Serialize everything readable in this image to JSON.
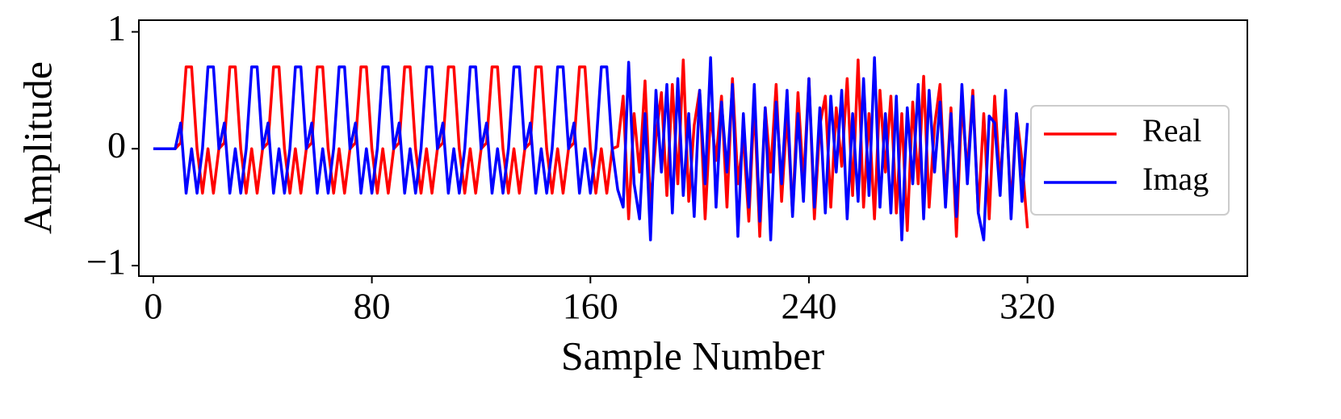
{
  "chart_data": {
    "type": "line",
    "x": [
      0,
      2,
      4,
      6,
      8,
      10,
      12,
      14,
      16,
      18,
      20,
      22,
      24,
      26,
      28,
      30,
      32,
      34,
      36,
      38,
      40,
      42,
      44,
      46,
      48,
      50,
      52,
      54,
      56,
      58,
      60,
      62,
      64,
      66,
      68,
      70,
      72,
      74,
      76,
      78,
      80,
      82,
      84,
      86,
      88,
      90,
      92,
      94,
      96,
      98,
      100,
      102,
      104,
      106,
      108,
      110,
      112,
      114,
      116,
      118,
      120,
      122,
      124,
      126,
      128,
      130,
      132,
      134,
      136,
      138,
      140,
      142,
      144,
      146,
      148,
      150,
      152,
      154,
      156,
      158,
      160,
      162,
      164,
      166,
      168,
      170,
      172,
      174,
      176,
      178,
      180,
      182,
      184,
      186,
      188,
      190,
      192,
      194,
      196,
      198,
      200,
      202,
      204,
      206,
      208,
      210,
      212,
      214,
      216,
      218,
      220,
      222,
      224,
      226,
      228,
      230,
      232,
      234,
      236,
      238,
      240,
      242,
      244,
      246,
      248,
      250,
      252,
      254,
      256,
      258,
      260,
      262,
      264,
      266,
      268,
      270,
      272,
      274,
      276,
      278,
      280,
      282,
      284,
      286,
      288,
      290,
      292,
      294,
      296,
      298,
      300,
      302,
      304,
      306,
      308,
      310,
      312,
      314,
      316,
      318,
      320
    ],
    "series": [
      {
        "name": "Real",
        "color": "#ff0000",
        "values": [
          0,
          0,
          0,
          0,
          0,
          0.05,
          0.7,
          0.7,
          0,
          -0.38,
          0,
          -0.38,
          0,
          0.05,
          0.7,
          0.7,
          0,
          -0.38,
          0,
          -0.38,
          0,
          0.05,
          0.7,
          0.7,
          0,
          -0.38,
          0,
          -0.38,
          0,
          0.05,
          0.7,
          0.7,
          0,
          -0.38,
          0,
          -0.38,
          0,
          0.05,
          0.7,
          0.7,
          0,
          -0.38,
          0,
          -0.38,
          0,
          0.05,
          0.7,
          0.7,
          0,
          -0.38,
          0,
          -0.38,
          0,
          0.05,
          0.7,
          0.7,
          0,
          -0.38,
          0,
          -0.38,
          0,
          0.05,
          0.7,
          0.7,
          0,
          -0.38,
          0,
          -0.38,
          0,
          0.05,
          0.7,
          0.7,
          0,
          -0.38,
          0,
          -0.38,
          0,
          0.05,
          0.7,
          0.7,
          0,
          -0.38,
          0,
          -0.38,
          0,
          0.02,
          0.45,
          -0.6,
          0.3,
          -0.2,
          0.58,
          -0.5,
          0.1,
          0.48,
          -0.4,
          0.55,
          -0.3,
          0.76,
          -0.45,
          0.2,
          0.5,
          -0.6,
          0.3,
          -0.1,
          0.45,
          -0.5,
          0.6,
          -0.3,
          0.1,
          -0.62,
          0.4,
          -0.75,
          0.35,
          -0.2,
          0.55,
          -0.45,
          0.3,
          -0.55,
          0.48,
          -0.3,
          0.6,
          -0.6,
          0.2,
          0.45,
          -0.5,
          0.35,
          -0.15,
          0.6,
          -0.4,
          0.76,
          -0.5,
          0.3,
          -0.6,
          0.5,
          -0.2,
          0.45,
          -0.55,
          0.3,
          -0.7,
          0.4,
          -0.3,
          0.62,
          -0.5,
          0.2,
          0.55,
          -0.45,
          0.35,
          -0.75,
          0.4,
          -0.2,
          0.5,
          -0.55,
          0.3,
          -0.6,
          0.45,
          -0.3,
          0.38,
          -0.5,
          0.3,
          -0.1,
          -0.68
        ]
      },
      {
        "name": "Imag",
        "color": "#0000ff",
        "values": [
          0,
          0,
          0,
          0,
          0,
          0.22,
          -0.38,
          0,
          -0.38,
          0,
          0.7,
          0.7,
          0,
          0.22,
          -0.38,
          0,
          -0.38,
          0,
          0.7,
          0.7,
          0,
          0.22,
          -0.38,
          0,
          -0.38,
          0,
          0.7,
          0.7,
          0,
          0.22,
          -0.38,
          0,
          -0.38,
          0,
          0.7,
          0.7,
          0,
          0.22,
          -0.38,
          0,
          -0.38,
          0,
          0.7,
          0.7,
          0,
          0.22,
          -0.38,
          0,
          -0.38,
          0,
          0.7,
          0.7,
          0,
          0.22,
          -0.38,
          0,
          -0.38,
          0,
          0.7,
          0.7,
          0,
          0.22,
          -0.38,
          0,
          -0.38,
          0,
          0.7,
          0.7,
          0,
          0.22,
          -0.38,
          0,
          -0.38,
          0,
          0.7,
          0.7,
          0,
          0.22,
          -0.38,
          0,
          -0.38,
          0,
          0.7,
          0.7,
          0,
          -0.35,
          -0.5,
          0.74,
          -0.3,
          -0.6,
          0.3,
          -0.78,
          0.5,
          -0.2,
          0.55,
          -0.55,
          0.6,
          -0.4,
          0.3,
          -0.58,
          0.5,
          -0.3,
          0.78,
          -0.5,
          0.4,
          -0.2,
          0.55,
          -0.75,
          0.3,
          -0.5,
          0.55,
          -0.62,
          0.35,
          -0.78,
          0.4,
          -0.3,
          0.5,
          -0.58,
          0.3,
          -0.45,
          0.6,
          -0.5,
          0.35,
          -0.55,
          0.45,
          -0.2,
          0.5,
          -0.6,
          0.3,
          -0.45,
          0.6,
          -0.4,
          0.78,
          -0.5,
          0.3,
          -0.55,
          0.45,
          -0.78,
          0.35,
          -0.3,
          0.55,
          -0.6,
          0.5,
          -0.2,
          0.4,
          -0.5,
          0.3,
          -0.58,
          0.55,
          -0.3,
          0.45,
          -0.55,
          -0.78,
          0.28,
          0.22,
          -0.4,
          0.5,
          -0.6,
          0.3,
          -0.45,
          0.22
        ]
      }
    ],
    "xlabel": "Sample Number",
    "ylabel": "Amplitude",
    "xlim": [
      -5.3,
      400.5
    ],
    "ylim": [
      -1.09,
      1.1
    ],
    "xticks": [
      0,
      80,
      160,
      240,
      320
    ],
    "yticks": [
      {
        "value": -1,
        "label": "−1"
      },
      0,
      1
    ],
    "legend": "right",
    "grid": false
  }
}
